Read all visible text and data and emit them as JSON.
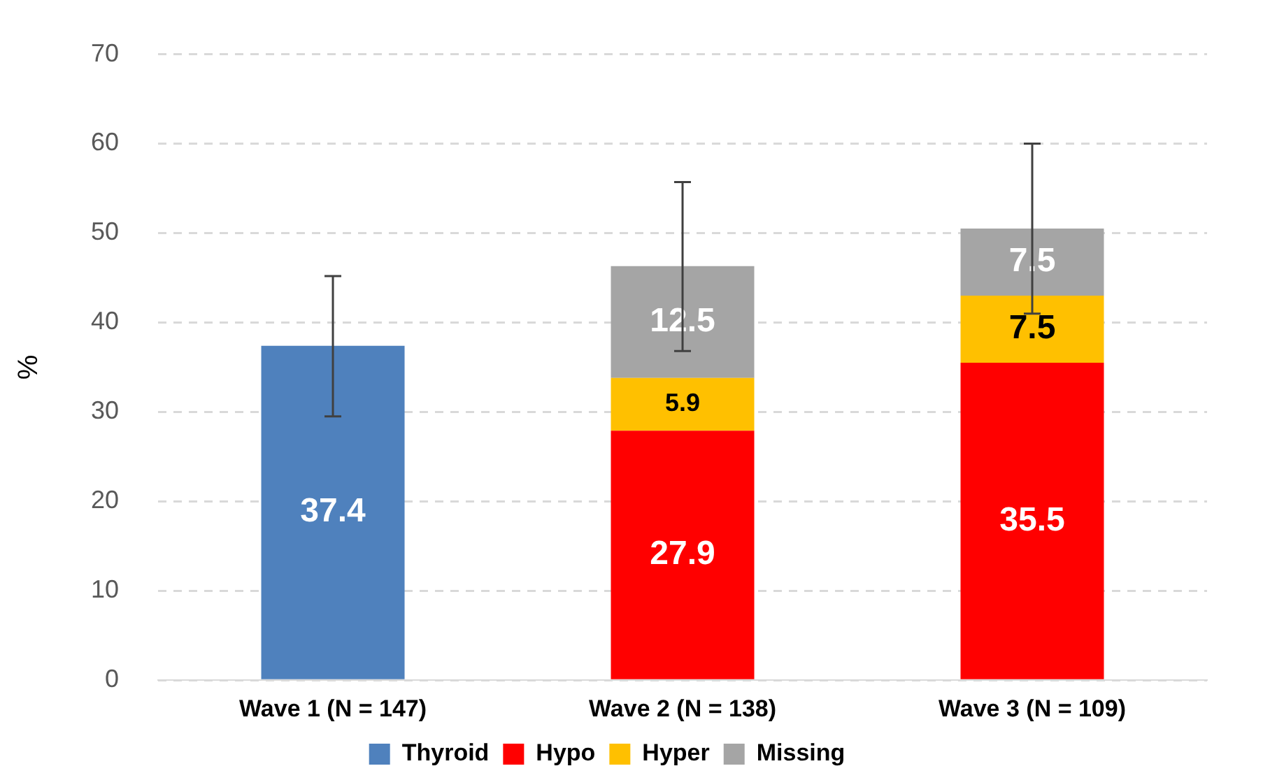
{
  "chart_data": {
    "type": "bar",
    "stacked": true,
    "ylabel": "%",
    "categories": [
      "Wave 1 (N = 147)",
      "Wave 2 (N = 138)",
      "Wave 3 (N = 109)"
    ],
    "series": [
      {
        "name": "Thyroid",
        "color": "#4f81bd",
        "values": [
          37.4,
          null,
          null
        ],
        "errors": [
          [
            29.5,
            45.2
          ],
          null,
          null
        ]
      },
      {
        "name": "Hypo",
        "color": "#ff0000",
        "values": [
          null,
          27.9,
          35.5
        ]
      },
      {
        "name": "Hyper",
        "color": "#ffc000",
        "values": [
          null,
          5.9,
          7.5
        ]
      },
      {
        "name": "Missing",
        "color": "#a5a5a5",
        "values": [
          null,
          12.5,
          7.5
        ],
        "errors": [
          null,
          [
            36.8,
            55.7
          ],
          [
            41,
            60
          ]
        ]
      }
    ],
    "ylim": [
      0,
      70
    ],
    "yticks": [
      0,
      10,
      20,
      30,
      40,
      50,
      60,
      70
    ],
    "grid": "y",
    "legend": "bottom",
    "data_labels": true
  }
}
